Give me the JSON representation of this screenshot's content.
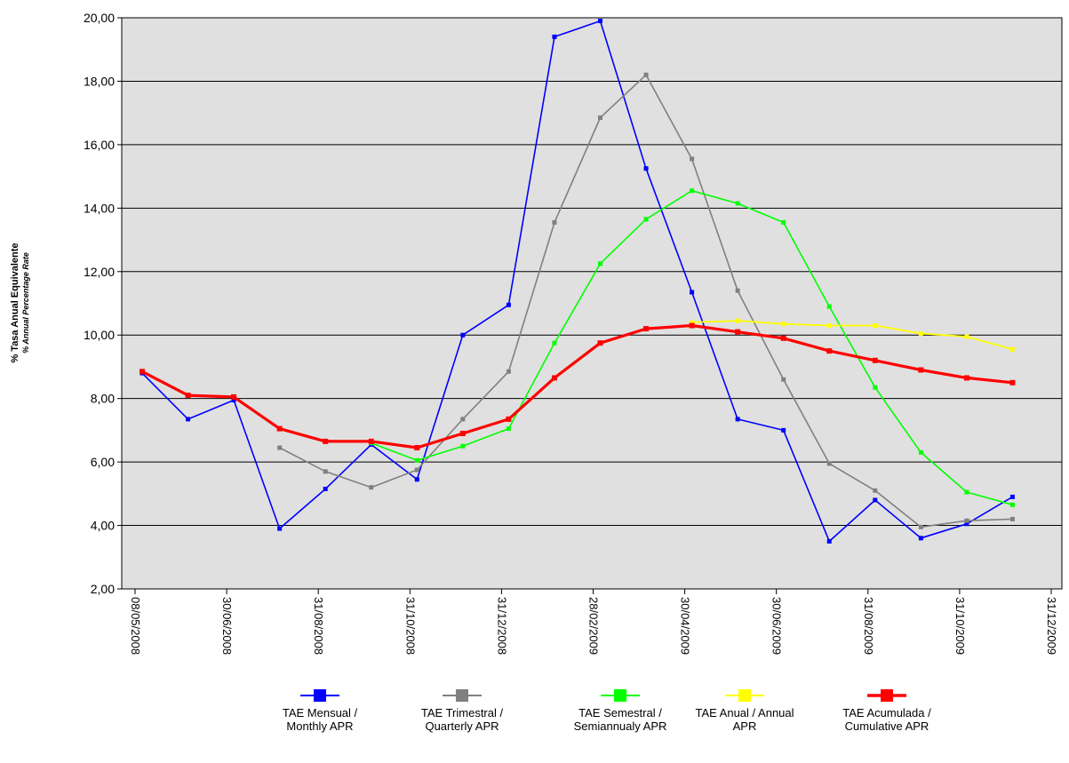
{
  "chart_data": {
    "type": "line",
    "title": "",
    "ylabel": "% Tasa Anual Equivalente",
    "ylabel_sub": "% Annual Percentage Rate",
    "ylim": [
      2,
      20
    ],
    "yticks": [
      "2,00",
      "4,00",
      "6,00",
      "8,00",
      "10,00",
      "12,00",
      "14,00",
      "16,00",
      "18,00",
      "20,00"
    ],
    "x_tick_labels": [
      "08/05/2008",
      "30/06/2008",
      "31/08/2008",
      "31/10/2008",
      "31/12/2008",
      "28/02/2009",
      "30/04/2009",
      "30/06/2009",
      "31/08/2009",
      "31/10/2009",
      "31/12/2009"
    ],
    "x_categories": [
      "31/05/2008",
      "30/06/2008",
      "31/07/2008",
      "31/08/2008",
      "30/09/2008",
      "31/10/2008",
      "30/11/2008",
      "31/12/2008",
      "31/01/2009",
      "28/02/2009",
      "31/03/2009",
      "30/04/2009",
      "31/05/2009",
      "30/06/2009",
      "31/07/2009",
      "31/08/2009",
      "30/09/2009",
      "31/10/2009",
      "30/11/2009",
      "31/12/2009"
    ],
    "grid": true,
    "legend_position": "bottom",
    "series": [
      {
        "name": "TAE Mensual /\nMonthly APR",
        "color": "#0000ff",
        "width": 1.6,
        "values": [
          8.8,
          7.35,
          7.95,
          3.9,
          5.15,
          6.55,
          5.45,
          10.0,
          10.95,
          19.4,
          19.9,
          15.25,
          11.35,
          7.35,
          7.0,
          3.5,
          4.8,
          3.6,
          4.05,
          4.9
        ]
      },
      {
        "name": "TAE Trimestral /\nQuarterly APR",
        "color": "#808080",
        "width": 1.6,
        "values": [
          null,
          null,
          null,
          6.45,
          5.7,
          5.2,
          5.75,
          7.35,
          8.85,
          13.55,
          16.85,
          18.2,
          15.55,
          11.4,
          8.6,
          5.95,
          5.1,
          3.95,
          4.15,
          4.2
        ]
      },
      {
        "name": "TAE Semestral /\nSemiannualy APR",
        "color": "#00ff00",
        "width": 1.6,
        "values": [
          null,
          null,
          null,
          null,
          null,
          6.6,
          6.05,
          6.5,
          7.05,
          9.75,
          12.25,
          13.65,
          14.55,
          14.15,
          13.55,
          10.9,
          8.35,
          6.3,
          5.05,
          4.65
        ]
      },
      {
        "name": "TAE Anual / Annual\nAPR",
        "color": "#ffff00",
        "width": 1.8,
        "values": [
          null,
          null,
          null,
          null,
          null,
          null,
          null,
          null,
          null,
          null,
          null,
          null,
          10.4,
          10.45,
          10.35,
          10.3,
          10.3,
          10.05,
          9.95,
          9.55
        ]
      },
      {
        "name": "TAE Acumulada /\nCumulative APR",
        "color": "#ff0000",
        "width": 3.2,
        "values": [
          8.85,
          8.1,
          8.05,
          7.05,
          6.65,
          6.65,
          6.45,
          6.9,
          7.35,
          8.65,
          9.75,
          10.2,
          10.3,
          10.1,
          9.9,
          9.5,
          9.2,
          8.9,
          8.65,
          8.5
        ]
      }
    ]
  }
}
